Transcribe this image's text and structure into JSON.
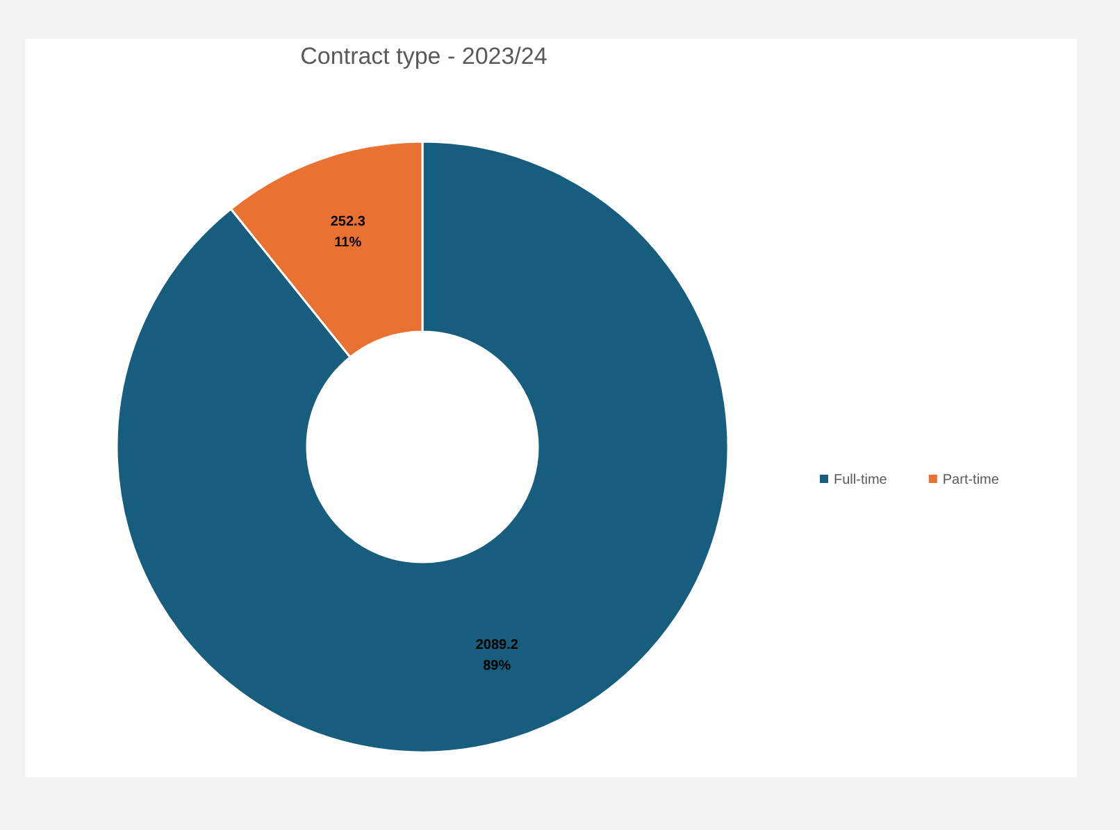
{
  "chart_data": {
    "type": "donut",
    "title": "Contract type - 2023/24",
    "categories": [
      "Full-time",
      "Part-time"
    ],
    "values": [
      2089.2,
      252.3
    ],
    "colors": [
      "#175e7e",
      "#e97132"
    ],
    "value_labels": [
      "2089.2\n89%",
      "252.3\n11%"
    ],
    "legend": "right"
  }
}
